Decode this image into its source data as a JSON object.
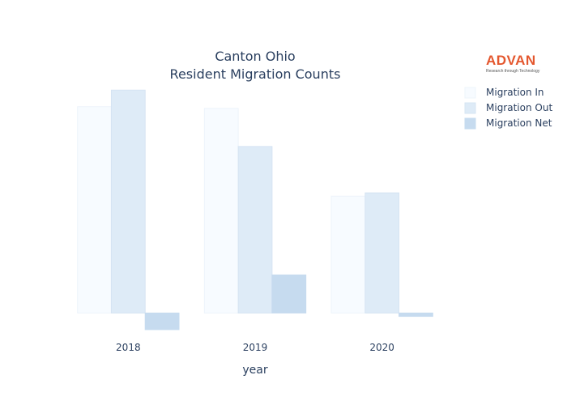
{
  "chart_data": {
    "type": "bar",
    "title_line1": "Canton Ohio",
    "title_line2": "Resident Migration Counts",
    "xlabel": "year",
    "ylabel": "",
    "categories": [
      "2018",
      "2019",
      "2020"
    ],
    "series": [
      {
        "name": "Migration In",
        "values": [
          24900,
          24700,
          14100
        ],
        "color": "#f7fbff",
        "stroke": "#eef4fb"
      },
      {
        "name": "Migration Out",
        "values": [
          26900,
          20100,
          14500
        ],
        "color": "#deebf7",
        "stroke": "#d6e4f3"
      },
      {
        "name": "Migration Net",
        "values": [
          -2000,
          4600,
          -400
        ],
        "color": "#c6dbef",
        "stroke": "#c6dbef"
      }
    ],
    "ylim": [
      -2300,
      28000
    ],
    "grid": false,
    "legend_position": "top-right"
  },
  "logo": {
    "name": "ADVAN",
    "tagline": "Research through Technology"
  }
}
